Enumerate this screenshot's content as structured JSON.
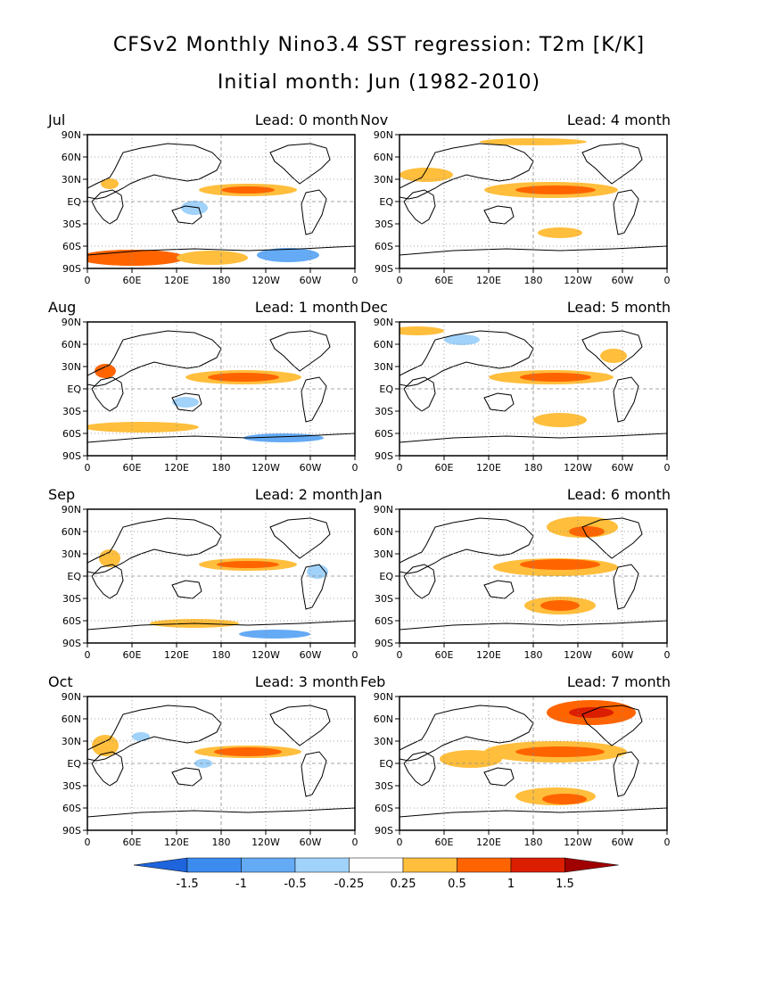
{
  "title_line1": "CFSv2 Monthly Nino3.4 SST regression: T2m [K/K]",
  "title_line2": "Initial month: Jun (1982-2010)",
  "lat_ticks": [
    "90N",
    "60N",
    "30N",
    "EQ",
    "30S",
    "60S",
    "90S"
  ],
  "lon_ticks": [
    "0",
    "60E",
    "120E",
    "180",
    "120W",
    "60W",
    "0"
  ],
  "panels": [
    {
      "month": "Jul",
      "lead": "Lead: 0 month"
    },
    {
      "month": "Nov",
      "lead": "Lead: 4 month"
    },
    {
      "month": "Aug",
      "lead": "Lead: 1 month"
    },
    {
      "month": "Dec",
      "lead": "Lead: 5 month"
    },
    {
      "month": "Sep",
      "lead": "Lead: 2 month"
    },
    {
      "month": "Jan",
      "lead": "Lead: 6 month"
    },
    {
      "month": "Oct",
      "lead": "Lead: 3 month"
    },
    {
      "month": "Feb",
      "lead": "Lead: 7 month"
    }
  ],
  "colorbar": {
    "labels": [
      "-1.5",
      "-1",
      "-0.5",
      "-0.25",
      "0.25",
      "0.5",
      "1",
      "1.5"
    ],
    "colors": [
      "#1e64dc",
      "#3c8cf0",
      "#64aaf5",
      "#a0d2fa",
      "#ffffff",
      "#ffbe3c",
      "#ff6400",
      "#dc1e00",
      "#a00000"
    ]
  },
  "colors": {
    "warm1": "#ffbe3c",
    "warm2": "#ff6400",
    "warm3": "#dc1e00",
    "cool1": "#a0d2fa",
    "cool2": "#64aaf5"
  }
}
